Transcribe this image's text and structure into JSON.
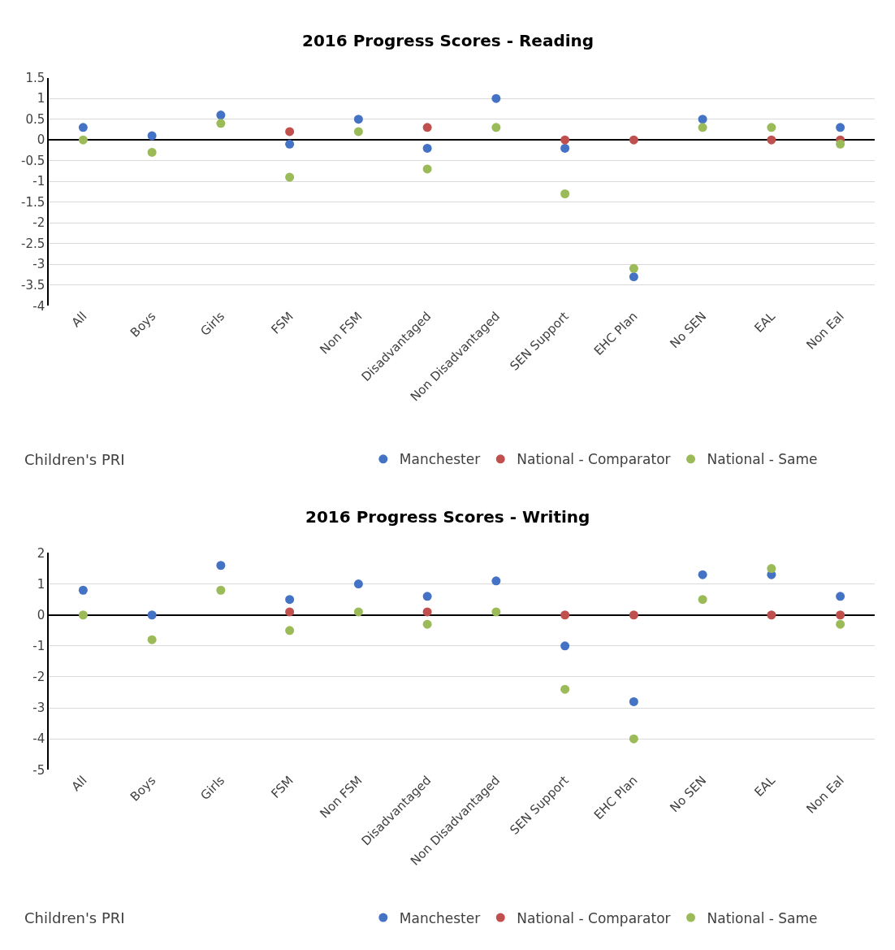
{
  "chart_data": [
    {
      "type": "scatter",
      "title": "2016 Progress Scores - Reading",
      "categories": [
        "All",
        "Boys",
        "Girls",
        "FSM",
        "Non FSM",
        "Disadvantaged",
        "Non Disadvantaged",
        "SEN Support",
        "EHC Plan",
        "No SEN",
        "EAL",
        "Non Eal"
      ],
      "series": [
        {
          "name": "Manchester",
          "color": "#4472c4",
          "values": [
            0.3,
            0.1,
            0.6,
            -0.1,
            0.5,
            -0.2,
            1.0,
            -0.2,
            -3.3,
            0.5,
            null,
            0.3
          ]
        },
        {
          "name": "National - Comparator",
          "color": "#c0504d",
          "values": [
            null,
            null,
            null,
            0.2,
            null,
            0.3,
            null,
            0,
            0,
            null,
            0,
            0
          ]
        },
        {
          "name": "National - Same",
          "color": "#9bbb59",
          "values": [
            0,
            -0.3,
            0.4,
            -0.9,
            0.2,
            -0.7,
            0.3,
            -1.3,
            -3.1,
            0.3,
            0.3,
            -0.1
          ]
        }
      ],
      "ylim": [
        -4,
        1.5
      ],
      "yticks": [
        -4,
        -3.5,
        -3,
        -2.5,
        -2,
        -1.5,
        -1,
        -0.5,
        0,
        0.5,
        1,
        1.5
      ],
      "grid": "y",
      "legend": "bottom",
      "marker": "circle",
      "annotations": [
        "Children's PRI"
      ]
    },
    {
      "type": "scatter",
      "title": "2016 Progress Scores - Writing",
      "categories": [
        "All",
        "Boys",
        "Girls",
        "FSM",
        "Non FSM",
        "Disadvantaged",
        "Non Disadvantaged",
        "SEN Support",
        "EHC Plan",
        "No SEN",
        "EAL",
        "Non Eal"
      ],
      "series": [
        {
          "name": "Manchester",
          "color": "#4472c4",
          "values": [
            0.8,
            0,
            1.6,
            0.5,
            1.0,
            0.6,
            1.1,
            -1.0,
            -2.8,
            1.3,
            1.3,
            0.6
          ]
        },
        {
          "name": "National - Comparator",
          "color": "#c0504d",
          "values": [
            null,
            null,
            null,
            0.1,
            null,
            0.1,
            null,
            0,
            0,
            null,
            0,
            0
          ]
        },
        {
          "name": "National - Same",
          "color": "#9bbb59",
          "values": [
            0,
            -0.8,
            0.8,
            -0.5,
            0.1,
            -0.3,
            0.1,
            -2.4,
            -4.0,
            0.5,
            1.5,
            -0.3
          ]
        }
      ],
      "ylim": [
        -5,
        2
      ],
      "yticks": [
        -5,
        -4,
        -3,
        -2,
        -1,
        0,
        1,
        2
      ],
      "grid": "y",
      "legend": "bottom",
      "marker": "circle",
      "annotations": [
        "Children's PRI"
      ]
    }
  ]
}
